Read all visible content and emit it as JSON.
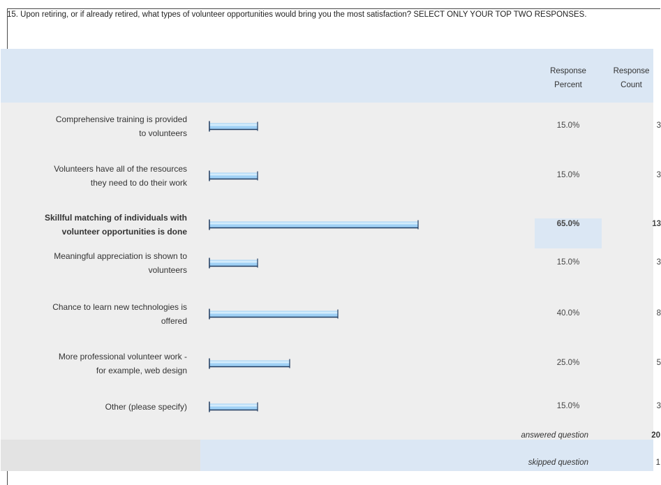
{
  "question": "15. Upon retiring, or if already retired, what types of volunteer opportunities would bring you the most satisfaction? SELECT ONLY YOUR TOP TWO RESPONSES.",
  "headers": {
    "percent": "Response\nPercent",
    "count": "Response\nCount"
  },
  "colors": {
    "header_band": "#dbe7f4",
    "body_band": "#eeeeee",
    "bar_fill": "#9fd0f5",
    "bar_border": "#1f3a5f"
  },
  "chart_data": {
    "type": "bar",
    "orientation": "horizontal",
    "categories": [
      "Comprehensive training is provided to volunteers",
      "Volunteers have all of the resources they need to do their work",
      "Skillful matching of individuals with volunteer opportunities is done",
      "Meaningful appreciation is shown to volunteers",
      "Chance to learn new technologies is offered",
      "More professional volunteer work - for example, web design",
      "Other (please specify)"
    ],
    "label_lines": [
      [
        "Comprehensive training is provided",
        "to volunteers"
      ],
      [
        "Volunteers have all of the resources",
        "they need to do their work"
      ],
      [
        "Skillful matching of individuals with",
        "volunteer opportunities is done"
      ],
      [
        "Meaningful appreciation is shown to",
        "volunteers"
      ],
      [
        "Chance to learn new technologies is",
        "offered"
      ],
      [
        "More professional volunteer work -",
        "for example, web design"
      ],
      [
        "Other (please specify)"
      ]
    ],
    "percent_values": [
      15.0,
      15.0,
      65.0,
      15.0,
      40.0,
      25.0,
      15.0
    ],
    "percent_labels": [
      "15.0%",
      "15.0%",
      "65.0%",
      "15.0%",
      "40.0%",
      "25.0%",
      "15.0%"
    ],
    "counts": [
      "3",
      "3",
      "13",
      "3",
      "8",
      "5",
      "3"
    ],
    "highlight_index": 2,
    "xlim": [
      0,
      100
    ]
  },
  "summary": [
    {
      "label": "answered question",
      "value": "20"
    },
    {
      "label": "skipped question",
      "value": "1"
    }
  ]
}
